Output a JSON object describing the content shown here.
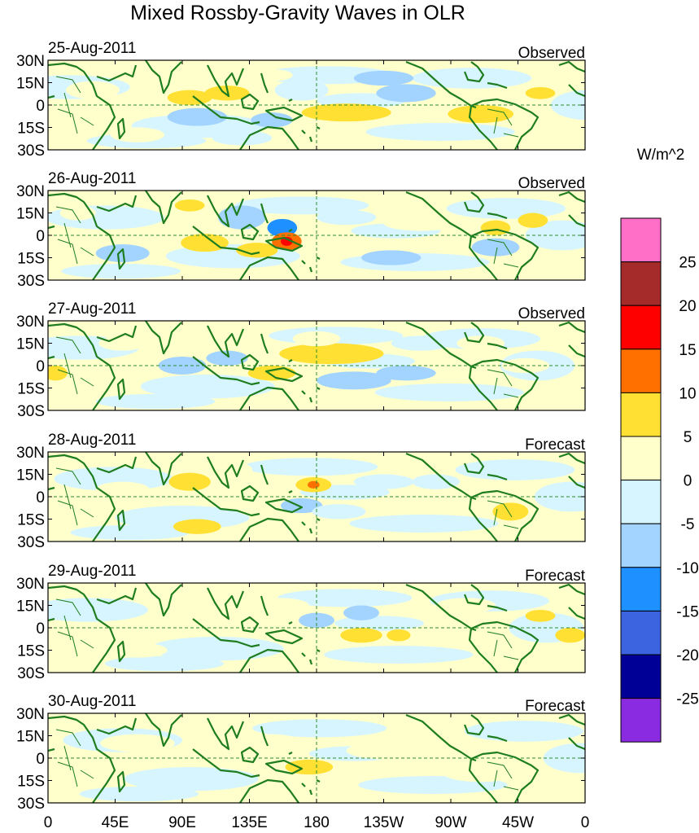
{
  "title": "Mixed Rossby-Gravity Waves in OLR",
  "panels": [
    {
      "date": "25-Aug-2011",
      "kind": "Observed"
    },
    {
      "date": "26-Aug-2011",
      "kind": "Observed"
    },
    {
      "date": "27-Aug-2011",
      "kind": "Observed"
    },
    {
      "date": "28-Aug-2011",
      "kind": "Forecast"
    },
    {
      "date": "29-Aug-2011",
      "kind": "Forecast"
    },
    {
      "date": "30-Aug-2011",
      "kind": "Forecast"
    }
  ],
  "lat_labels": [
    "30N",
    "15N",
    "0",
    "15S",
    "30S"
  ],
  "lon_labels": [
    "0",
    "45E",
    "90E",
    "135E",
    "180",
    "135W",
    "90W",
    "45W",
    "0"
  ],
  "colorbar": {
    "units": "W/m^2",
    "labels": [
      "25",
      "20",
      "15",
      "10",
      "5",
      "0",
      "-5",
      "-10",
      "-15",
      "-20",
      "-25"
    ],
    "colors_top_to_bottom": [
      "#ff6ec7",
      "#a52a2a",
      "#ff0000",
      "#ff7000",
      "#ffe033",
      "#ffffcc",
      "#d6f5ff",
      "#a3d4ff",
      "#1e90ff",
      "#3c64e0",
      "#000096",
      "#8a2be2"
    ]
  },
  "color_scale": {
    "bins": [
      {
        "min": 25,
        "max": null,
        "color": "#ff6ec7"
      },
      {
        "min": 20,
        "max": 25,
        "color": "#a52a2a"
      },
      {
        "min": 15,
        "max": 20,
        "color": "#ff0000"
      },
      {
        "min": 10,
        "max": 15,
        "color": "#ff7000"
      },
      {
        "min": 5,
        "max": 10,
        "color": "#ffe033"
      },
      {
        "min": 0,
        "max": 5,
        "color": "#ffffcc"
      },
      {
        "min": -5,
        "max": 0,
        "color": "#d6f5ff"
      },
      {
        "min": -10,
        "max": -5,
        "color": "#a3d4ff"
      },
      {
        "min": -15,
        "max": -10,
        "color": "#1e90ff"
      },
      {
        "min": -20,
        "max": -15,
        "color": "#3c64e0"
      },
      {
        "min": -25,
        "max": -20,
        "color": "#000096"
      },
      {
        "min": null,
        "max": -25,
        "color": "#8a2be2"
      }
    ]
  },
  "anomalies": [
    [
      {
        "lon": 30,
        "lat": 10,
        "w": 18,
        "h": 6,
        "v": 3
      },
      {
        "lon": 70,
        "lat": 0,
        "w": 20,
        "h": 8,
        "v": 3
      },
      {
        "lon": 95,
        "lat": 5,
        "w": 15,
        "h": 5,
        "v": 7
      },
      {
        "lon": 120,
        "lat": 8,
        "w": 15,
        "h": 5,
        "v": 7
      },
      {
        "lon": 100,
        "lat": -8,
        "w": 20,
        "h": 6,
        "v": -7
      },
      {
        "lon": 150,
        "lat": -10,
        "w": 14,
        "h": 5,
        "v": -7
      },
      {
        "lon": 170,
        "lat": 10,
        "w": 18,
        "h": 7,
        "v": -3
      },
      {
        "lon": 225,
        "lat": 18,
        "w": 20,
        "h": 5,
        "v": -6
      },
      {
        "lon": 240,
        "lat": 8,
        "w": 20,
        "h": 6,
        "v": -6
      },
      {
        "lon": 200,
        "lat": -5,
        "w": 30,
        "h": 6,
        "v": 7
      },
      {
        "lon": 190,
        "lat": -18,
        "w": 20,
        "h": 5,
        "v": 3
      },
      {
        "lon": 290,
        "lat": -6,
        "w": 22,
        "h": 6,
        "v": 7
      },
      {
        "lon": 330,
        "lat": 8,
        "w": 10,
        "h": 4,
        "v": 7
      },
      {
        "lon": 130,
        "lat": -22,
        "w": 20,
        "h": 5,
        "v": -3
      },
      {
        "lon": 60,
        "lat": -20,
        "w": 18,
        "h": 5,
        "v": 3
      },
      {
        "lon": 150,
        "lat": 20,
        "w": 14,
        "h": 4,
        "v": 3
      }
    ],
    [
      {
        "lon": 130,
        "lat": 12,
        "w": 16,
        "h": 8,
        "v": -7
      },
      {
        "lon": 157,
        "lat": 5,
        "w": 10,
        "h": 6,
        "v": -14
      },
      {
        "lon": 160,
        "lat": -4,
        "w": 10,
        "h": 6,
        "v": 12
      },
      {
        "lon": 160,
        "lat": -4,
        "w": 4,
        "h": 3,
        "v": 17
      },
      {
        "lon": 140,
        "lat": -10,
        "w": 14,
        "h": 5,
        "v": 7
      },
      {
        "lon": 105,
        "lat": -5,
        "w": 16,
        "h": 6,
        "v": 7
      },
      {
        "lon": 95,
        "lat": 20,
        "w": 10,
        "h": 4,
        "v": 7
      },
      {
        "lon": 20,
        "lat": 15,
        "w": 12,
        "h": 5,
        "v": 3
      },
      {
        "lon": 50,
        "lat": -12,
        "w": 18,
        "h": 6,
        "v": -7
      },
      {
        "lon": 200,
        "lat": 12,
        "w": 20,
        "h": 5,
        "v": -3
      },
      {
        "lon": 230,
        "lat": -15,
        "w": 20,
        "h": 5,
        "v": -7
      },
      {
        "lon": 300,
        "lat": 5,
        "w": 10,
        "h": 5,
        "v": 7
      },
      {
        "lon": 325,
        "lat": 10,
        "w": 10,
        "h": 5,
        "v": 7
      },
      {
        "lon": 300,
        "lat": -8,
        "w": 16,
        "h": 6,
        "v": -7
      },
      {
        "lon": 185,
        "lat": 0,
        "w": 14,
        "h": 5,
        "v": 3
      },
      {
        "lon": 250,
        "lat": 8,
        "w": 25,
        "h": 5,
        "v": 3
      }
    ],
    [
      {
        "lon": 190,
        "lat": 8,
        "w": 35,
        "h": 7,
        "v": 7
      },
      {
        "lon": 180,
        "lat": 18,
        "w": 16,
        "h": 5,
        "v": 3
      },
      {
        "lon": 150,
        "lat": -5,
        "w": 16,
        "h": 5,
        "v": 7
      },
      {
        "lon": 120,
        "lat": 5,
        "w": 14,
        "h": 5,
        "v": -7
      },
      {
        "lon": 90,
        "lat": 0,
        "w": 16,
        "h": 6,
        "v": -7
      },
      {
        "lon": 205,
        "lat": -10,
        "w": 25,
        "h": 6,
        "v": -7
      },
      {
        "lon": 240,
        "lat": -5,
        "w": 20,
        "h": 5,
        "v": -7
      },
      {
        "lon": 5,
        "lat": -5,
        "w": 8,
        "h": 5,
        "v": 7
      },
      {
        "lon": 50,
        "lat": 15,
        "w": 16,
        "h": 5,
        "v": 3
      },
      {
        "lon": 250,
        "lat": 15,
        "w": 20,
        "h": 5,
        "v": -3
      },
      {
        "lon": 320,
        "lat": 0,
        "w": 16,
        "h": 5,
        "v": 3
      },
      {
        "lon": 290,
        "lat": 15,
        "w": 16,
        "h": 5,
        "v": 3
      }
    ],
    [
      {
        "lon": 95,
        "lat": 10,
        "w": 14,
        "h": 6,
        "v": 7
      },
      {
        "lon": 125,
        "lat": 18,
        "w": 12,
        "h": 5,
        "v": 3
      },
      {
        "lon": 140,
        "lat": -8,
        "w": 14,
        "h": 5,
        "v": 3
      },
      {
        "lon": 178,
        "lat": 8,
        "w": 12,
        "h": 5,
        "v": 7
      },
      {
        "lon": 178,
        "lat": 8,
        "w": 4,
        "h": 2.5,
        "v": 12
      },
      {
        "lon": 170,
        "lat": -6,
        "w": 14,
        "h": 5,
        "v": -7
      },
      {
        "lon": 100,
        "lat": -20,
        "w": 16,
        "h": 5,
        "v": 7
      },
      {
        "lon": 310,
        "lat": -10,
        "w": 12,
        "h": 6,
        "v": 7
      },
      {
        "lon": 225,
        "lat": 10,
        "w": 20,
        "h": 5,
        "v": -3
      },
      {
        "lon": 260,
        "lat": 10,
        "w": 16,
        "h": 5,
        "v": -3
      },
      {
        "lon": 195,
        "lat": -10,
        "w": 18,
        "h": 5,
        "v": -3
      },
      {
        "lon": 50,
        "lat": 5,
        "w": 18,
        "h": 5,
        "v": 3
      }
    ],
    [
      {
        "lon": 210,
        "lat": 10,
        "w": 12,
        "h": 5,
        "v": -7
      },
      {
        "lon": 210,
        "lat": -5,
        "w": 14,
        "h": 5,
        "v": 7
      },
      {
        "lon": 235,
        "lat": -5,
        "w": 8,
        "h": 4,
        "v": 7
      },
      {
        "lon": 330,
        "lat": 8,
        "w": 10,
        "h": 4,
        "v": 7
      },
      {
        "lon": 350,
        "lat": -5,
        "w": 10,
        "h": 5,
        "v": 7
      },
      {
        "lon": 180,
        "lat": 5,
        "w": 12,
        "h": 5,
        "v": -7
      },
      {
        "lon": 155,
        "lat": 15,
        "w": 20,
        "h": 5,
        "v": 3
      },
      {
        "lon": 60,
        "lat": -15,
        "w": 20,
        "h": 5,
        "v": 3
      },
      {
        "lon": 280,
        "lat": 15,
        "w": 20,
        "h": 5,
        "v": 3
      }
    ],
    [
      {
        "lon": 175,
        "lat": -6,
        "w": 16,
        "h": 5,
        "v": 7
      },
      {
        "lon": 150,
        "lat": 10,
        "w": 20,
        "h": 6,
        "v": 3
      },
      {
        "lon": 60,
        "lat": 10,
        "w": 25,
        "h": 6,
        "v": 3
      },
      {
        "lon": 230,
        "lat": 5,
        "w": 30,
        "h": 6,
        "v": 3
      },
      {
        "lon": 290,
        "lat": -10,
        "w": 25,
        "h": 6,
        "v": 3
      }
    ]
  ]
}
